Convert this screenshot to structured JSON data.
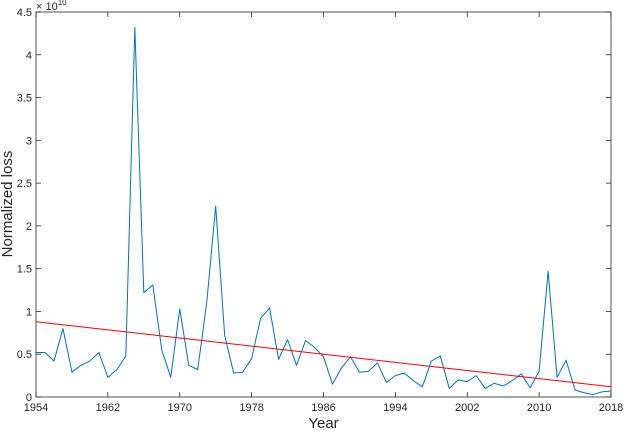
{
  "chart_data": {
    "type": "line",
    "title": "",
    "xlabel": "Year",
    "ylabel": "Normalized loss",
    "y_exponent_label": "× 10",
    "y_exponent_power": "10",
    "y_scale_factor": 10000000000,
    "xlim": [
      1954,
      2018
    ],
    "ylim": [
      0,
      4.5
    ],
    "grid": false,
    "legend": "none",
    "x_ticks": [
      "1954",
      "1962",
      "1970",
      "1978",
      "1986",
      "1994",
      "2002",
      "2010",
      "2018"
    ],
    "y_ticks": [
      "0",
      "0.5",
      "1",
      "1.5",
      "2",
      "2.5",
      "3",
      "3.5",
      "4",
      "4.5"
    ],
    "series": [
      {
        "color": "#0072bd",
        "x": [
          1954,
          1955,
          1956,
          1957,
          1958,
          1959,
          1960,
          1961,
          1962,
          1963,
          1964,
          1965,
          1966,
          1967,
          1968,
          1969,
          1970,
          1971,
          1972,
          1973,
          1974,
          1975,
          1976,
          1977,
          1978,
          1979,
          1980,
          1981,
          1982,
          1983,
          1984,
          1985,
          1986,
          1987,
          1988,
          1989,
          1990,
          1991,
          1992,
          1993,
          1994,
          1995,
          1996,
          1997,
          1998,
          1999,
          2000,
          2001,
          2002,
          2003,
          2004,
          2005,
          2006,
          2007,
          2008,
          2009,
          2010,
          2011,
          2012,
          2013,
          2014,
          2015,
          2016,
          2017,
          2018
        ],
        "y": [
          0.52,
          0.52,
          0.42,
          0.8,
          0.29,
          0.37,
          0.42,
          0.52,
          0.23,
          0.32,
          0.48,
          4.32,
          1.22,
          1.31,
          0.55,
          0.23,
          1.03,
          0.37,
          0.32,
          1.1,
          2.23,
          0.72,
          0.28,
          0.29,
          0.45,
          0.92,
          1.04,
          0.44,
          0.67,
          0.37,
          0.66,
          0.58,
          0.47,
          0.15,
          0.34,
          0.47,
          0.29,
          0.3,
          0.4,
          0.17,
          0.25,
          0.28,
          0.19,
          0.12,
          0.42,
          0.48,
          0.1,
          0.2,
          0.18,
          0.25,
          0.1,
          0.16,
          0.13,
          0.19,
          0.27,
          0.11,
          0.3,
          1.47,
          0.23,
          0.43,
          0.08,
          0.05,
          0.03,
          0.06,
          0.07
        ]
      },
      {
        "color": "#ff0000",
        "x": [
          1954,
          2018
        ],
        "y": [
          0.88,
          0.12
        ]
      }
    ]
  }
}
